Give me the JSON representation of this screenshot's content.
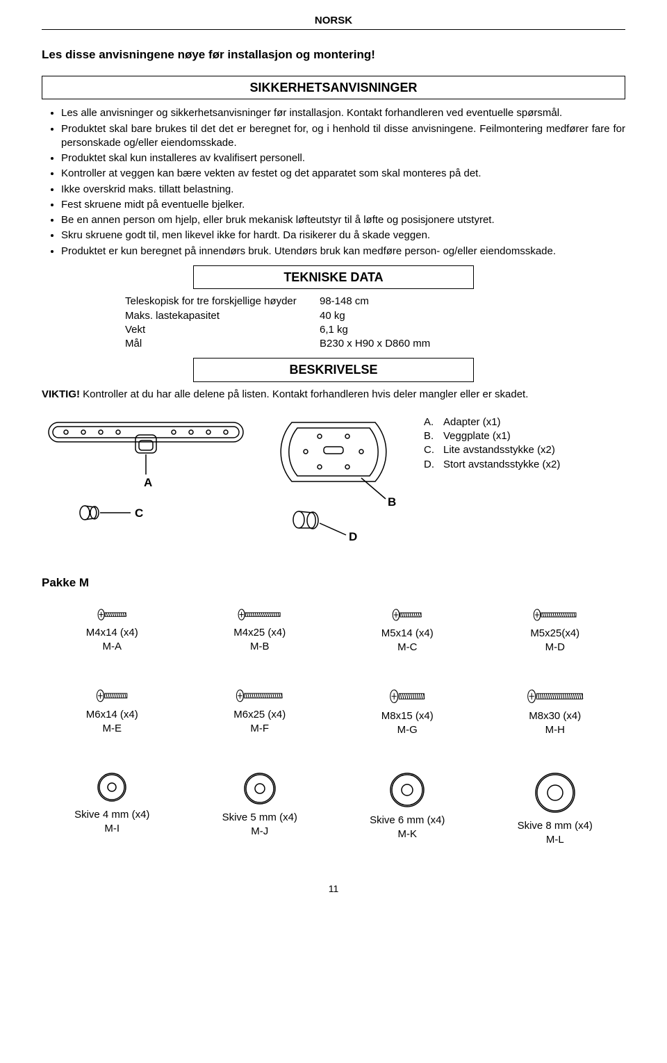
{
  "header": {
    "language": "NORSK"
  },
  "intro": "Les disse anvisningene nøye før installasjon og montering!",
  "safety": {
    "title": "SIKKERHETSANVISNINGER",
    "bullets": [
      "Les alle anvisninger og sikkerhetsanvisninger før installasjon. Kontakt forhandleren ved eventuelle spørsmål.",
      "Produktet skal bare brukes til det det er beregnet for, og i henhold til disse anvisningene. Feilmontering medfører fare for personskade og/eller eiendomsskade.",
      "Produktet skal kun installeres av kvalifisert personell.",
      "Kontroller at veggen kan bære vekten av festet og det apparatet som skal monteres på det.",
      "Ikke overskrid maks. tillatt belastning.",
      "Fest skruene midt på eventuelle bjelker.",
      "Be en annen person om hjelp, eller bruk mekanisk løfteutstyr til å løfte og posisjonere utstyret.",
      "Skru skruene godt til, men likevel ikke for hardt. Da risikerer du å skade veggen.",
      "Produktet er kun beregnet på innendørs bruk. Utendørs bruk kan medføre person- og/eller eiendomsskade."
    ]
  },
  "tech": {
    "title": "TEKNISKE DATA",
    "rows": [
      {
        "label": "Teleskopisk for tre forskjellige høyder",
        "value": "98-148 cm"
      },
      {
        "label": "Maks. lastekapasitet",
        "value": "40 kg"
      },
      {
        "label": "Vekt",
        "value": "6,1 kg"
      },
      {
        "label": "Mål",
        "value": "B230 x H90 x D860 mm"
      }
    ]
  },
  "desc": {
    "title": "BESKRIVELSE",
    "viktig_label": "VIKTIG!",
    "viktig_text": "Kontroller at du har alle delene på listen. Kontakt forhandleren hvis deler mangler eller er skadet."
  },
  "diagramLabels": {
    "A": "A",
    "B": "B",
    "C": "C",
    "D": "D"
  },
  "partsList": [
    {
      "key": "A.",
      "text": "Adapter (x1)"
    },
    {
      "key": "B.",
      "text": "Veggplate (x1)"
    },
    {
      "key": "C.",
      "text": "Lite avstandsstykke (x2)"
    },
    {
      "key": "D.",
      "text": "Stort avstandsstykke (x2)"
    }
  ],
  "pakkeM": {
    "title": "Pakke M",
    "screws": [
      {
        "label1": "M4x14 (x4)",
        "label2": "M-A",
        "len": 28,
        "dia": 4
      },
      {
        "label1": "M4x25 (x4)",
        "label2": "M-B",
        "len": 48,
        "dia": 4
      },
      {
        "label1": "M5x14 (x4)",
        "label2": "M-C",
        "len": 28,
        "dia": 5
      },
      {
        "label1": "M5x25(x4)",
        "label2": "M-D",
        "len": 48,
        "dia": 5
      },
      {
        "label1": "M6x14 (x4)",
        "label2": "M-E",
        "len": 30,
        "dia": 6
      },
      {
        "label1": "M6x25 (x4)",
        "label2": "M-F",
        "len": 52,
        "dia": 6
      },
      {
        "label1": "M8x15 (x4)",
        "label2": "M-G",
        "len": 34,
        "dia": 8
      },
      {
        "label1": "M8x30 (x4)",
        "label2": "M-H",
        "len": 64,
        "dia": 8
      }
    ],
    "washers": [
      {
        "label1": "Skive 4 mm (x4)",
        "label2": "M-I",
        "outer": 20,
        "inner": 6
      },
      {
        "label1": "Skive 5 mm (x4)",
        "label2": "M-J",
        "outer": 22,
        "inner": 7
      },
      {
        "label1": "Skive 6 mm (x4)",
        "label2": "M-K",
        "outer": 24,
        "inner": 8
      },
      {
        "label1": "Skive 8 mm (x4)",
        "label2": "M-L",
        "outer": 28,
        "inner": 11
      }
    ]
  },
  "pageNumber": "11",
  "colors": {
    "stroke": "#000000",
    "bg": "#ffffff"
  }
}
